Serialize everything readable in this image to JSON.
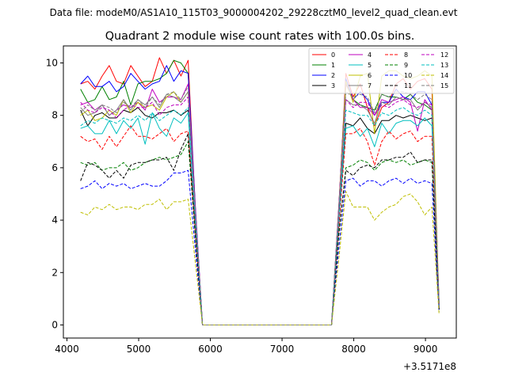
{
  "figure": {
    "suptitle": "Data file: modeM0/AS1A10_115T03_9000004202_29228cztM0_level2_quad_clean.evt"
  },
  "chart_data": {
    "type": "line",
    "title": "Quadrant 2 module wise count rates with 100.0s bins.",
    "xlabel": "",
    "ylabel": "",
    "x_offset_label": "+3.5171e8",
    "xlim": [
      3950,
      9430
    ],
    "ylim": [
      -0.5,
      10.65
    ],
    "x_ticks": [
      4000,
      5000,
      6000,
      7000,
      8000,
      9000
    ],
    "y_ticks": [
      0,
      2,
      4,
      6,
      8,
      10
    ],
    "grid": false,
    "legend_position": "top-right",
    "legend_columns": 4,
    "x": [
      4190,
      4290,
      4390,
      4490,
      4590,
      4690,
      4790,
      4890,
      4990,
      5090,
      5190,
      5290,
      5390,
      5490,
      5590,
      5690,
      5790,
      5890,
      7690,
      7790,
      7890,
      7990,
      8090,
      8190,
      8290,
      8390,
      8490,
      8590,
      8690,
      8790,
      8890,
      8990,
      9090,
      9190
    ],
    "series": [
      {
        "name": "0",
        "color": "#ff0000",
        "dash": "solid",
        "values": [
          9.2,
          9.3,
          9.0,
          9.5,
          9.9,
          9.3,
          9.2,
          9.9,
          9.5,
          9.1,
          9.3,
          10.2,
          9.6,
          10.1,
          9.5,
          10.1,
          4.5,
          0,
          0,
          4.4,
          9.6,
          8.7,
          9.2,
          8.3,
          7.6,
          8.3,
          8.5,
          9.2,
          9.4,
          9.0,
          9.3,
          9.4,
          9.0,
          0.8
        ]
      },
      {
        "name": "1",
        "color": "#008000",
        "dash": "solid",
        "values": [
          9.0,
          8.5,
          8.6,
          9.1,
          8.6,
          8.7,
          9.3,
          8.4,
          9.2,
          9.3,
          9.3,
          9.4,
          9.6,
          10.1,
          10.0,
          9.6,
          4.3,
          0,
          0,
          4.5,
          9.2,
          8.6,
          8.4,
          8.3,
          8.2,
          8.8,
          8.7,
          8.7,
          8.6,
          8.8,
          8.5,
          8.4,
          8.2,
          0.8
        ]
      },
      {
        "name": "2",
        "color": "#0000ff",
        "dash": "solid",
        "values": [
          9.2,
          9.5,
          9.1,
          9.1,
          9.3,
          8.9,
          9.1,
          9.6,
          9.3,
          9.0,
          9.2,
          9.3,
          9.9,
          9.3,
          9.7,
          9.6,
          4.6,
          0,
          0,
          4.4,
          9.4,
          8.6,
          8.9,
          8.6,
          8.0,
          8.5,
          8.5,
          9.0,
          8.7,
          8.6,
          8.9,
          8.9,
          8.4,
          0.7
        ]
      },
      {
        "name": "3",
        "color": "#000000",
        "dash": "solid",
        "values": [
          8.2,
          7.6,
          8.0,
          8.1,
          7.9,
          7.9,
          8.2,
          8.1,
          8.3,
          8.0,
          7.9,
          8.1,
          8.1,
          8.2,
          8.0,
          8.2,
          4.0,
          0,
          0,
          4.0,
          7.7,
          7.6,
          7.9,
          7.5,
          7.3,
          7.8,
          7.8,
          8.0,
          7.9,
          8.0,
          7.9,
          7.8,
          7.9,
          0.6
        ]
      },
      {
        "name": "4",
        "color": "#bf00bf",
        "dash": "solid",
        "values": [
          8.4,
          8.5,
          8.2,
          8.4,
          8.0,
          8.2,
          8.4,
          8.3,
          8.5,
          8.2,
          9.0,
          8.5,
          8.7,
          8.7,
          8.6,
          9.2,
          4.5,
          0,
          0,
          4.5,
          9.2,
          8.6,
          8.3,
          8.3,
          8.0,
          8.6,
          8.5,
          8.6,
          8.7,
          8.5,
          7.4,
          8.6,
          8.2,
          0.7
        ]
      },
      {
        "name": "5",
        "color": "#00bfbf",
        "dash": "solid",
        "values": [
          7.5,
          7.6,
          7.3,
          7.3,
          7.8,
          7.3,
          7.8,
          7.5,
          7.9,
          6.9,
          8.1,
          7.5,
          7.2,
          7.9,
          7.7,
          8.1,
          3.9,
          0,
          0,
          3.9,
          7.5,
          7.6,
          7.2,
          7.5,
          6.8,
          7.7,
          7.3,
          7.7,
          7.8,
          7.8,
          7.6,
          7.9,
          7.6,
          0.7
        ]
      },
      {
        "name": "6",
        "color": "#bfbf00",
        "dash": "solid",
        "values": [
          8.0,
          8.2,
          7.8,
          7.9,
          8.2,
          8.0,
          8.6,
          8.1,
          8.5,
          8.3,
          8.4,
          8.2,
          8.7,
          8.9,
          8.5,
          8.9,
          4.3,
          0,
          0,
          4.3,
          9.3,
          8.5,
          9.5,
          9.6,
          7.3,
          9.5,
          9.7,
          9.7,
          9.5,
          9.4,
          9.5,
          9.7,
          9.5,
          0.8
        ]
      },
      {
        "name": "7",
        "color": "#7f7f7f",
        "dash": "solid",
        "values": [
          8.3,
          8.0,
          8.1,
          8.4,
          8.0,
          8.2,
          8.6,
          8.2,
          8.6,
          8.4,
          8.7,
          8.3,
          8.8,
          8.7,
          8.5,
          8.9,
          4.3,
          0,
          0,
          4.3,
          8.6,
          8.4,
          8.4,
          8.2,
          7.7,
          8.5,
          8.4,
          8.7,
          8.6,
          8.6,
          8.2,
          8.5,
          8.3,
          0.7
        ]
      },
      {
        "name": "8",
        "color": "#ff0000",
        "dash": "dashed",
        "values": [
          7.2,
          7.0,
          7.1,
          6.7,
          7.2,
          6.8,
          7.2,
          7.6,
          7.2,
          7.2,
          7.1,
          7.3,
          7.5,
          7.0,
          7.3,
          7.4,
          3.6,
          0,
          0,
          3.7,
          7.3,
          7.3,
          7.5,
          7.0,
          6.1,
          7.0,
          7.4,
          7.1,
          7.3,
          7.4,
          7.0,
          7.2,
          7.2,
          0.6
        ]
      },
      {
        "name": "9",
        "color": "#008000",
        "dash": "dashed",
        "values": [
          6.2,
          6.1,
          6.2,
          5.9,
          6.0,
          6.0,
          6.2,
          5.9,
          6.0,
          6.2,
          6.3,
          6.4,
          6.3,
          6.4,
          6.5,
          7.0,
          3.4,
          0,
          0,
          3.4,
          6.0,
          6.1,
          6.3,
          6.2,
          5.9,
          6.2,
          6.3,
          6.2,
          6.3,
          6.1,
          6.2,
          6.3,
          6.2,
          0.6
        ]
      },
      {
        "name": "10",
        "color": "#0000ff",
        "dash": "dashed",
        "values": [
          5.2,
          5.3,
          5.5,
          5.2,
          5.4,
          5.3,
          5.4,
          5.2,
          5.3,
          5.4,
          5.3,
          5.3,
          5.5,
          5.8,
          5.8,
          5.9,
          2.9,
          0,
          0,
          2.9,
          5.5,
          5.6,
          5.3,
          5.5,
          5.5,
          5.3,
          5.5,
          5.6,
          5.4,
          5.6,
          5.4,
          5.5,
          5.4,
          0.5
        ]
      },
      {
        "name": "11",
        "color": "#000000",
        "dash": "dashed",
        "values": [
          5.5,
          6.2,
          6.1,
          5.9,
          5.6,
          5.9,
          5.6,
          6.1,
          6.2,
          6.2,
          6.3,
          6.3,
          6.4,
          5.9,
          6.7,
          7.3,
          3.5,
          0,
          0,
          3.5,
          5.9,
          5.7,
          6.0,
          6.1,
          6.0,
          6.3,
          6.3,
          6.4,
          6.4,
          6.6,
          6.2,
          6.3,
          6.3,
          0.6
        ]
      },
      {
        "name": "12",
        "color": "#bf00bf",
        "dash": "dashed",
        "values": [
          8.5,
          8.2,
          8.1,
          8.3,
          8.2,
          7.9,
          8.2,
          8.4,
          8.3,
          8.3,
          8.5,
          8.0,
          8.3,
          8.4,
          8.4,
          8.7,
          4.2,
          0,
          0,
          4.2,
          8.6,
          8.3,
          8.5,
          8.5,
          8.0,
          8.4,
          8.3,
          8.5,
          8.6,
          8.4,
          8.3,
          8.5,
          8.4,
          0.7
        ]
      },
      {
        "name": "13",
        "color": "#00bfbf",
        "dash": "dashed",
        "values": [
          7.6,
          7.8,
          7.7,
          7.9,
          7.8,
          7.7,
          7.9,
          7.8,
          8.0,
          7.8,
          8.1,
          7.8,
          8.0,
          8.2,
          8.0,
          8.3,
          4.0,
          0,
          0,
          4.0,
          8.2,
          8.1,
          8.0,
          8.0,
          7.6,
          8.1,
          8.0,
          8.2,
          8.3,
          8.1,
          8.0,
          8.2,
          8.0,
          0.7
        ]
      },
      {
        "name": "14",
        "color": "#bfbf00",
        "dash": "dashed",
        "values": [
          4.3,
          4.2,
          4.5,
          4.4,
          4.6,
          4.4,
          4.5,
          4.5,
          4.4,
          4.6,
          4.6,
          4.8,
          4.4,
          4.7,
          4.7,
          4.8,
          2.4,
          0,
          0,
          2.5,
          5.1,
          4.5,
          4.5,
          4.5,
          4.0,
          4.3,
          4.5,
          4.6,
          4.9,
          5.0,
          4.7,
          4.2,
          4.5,
          0.4
        ]
      },
      {
        "name": "15",
        "color": "#7f7f7f",
        "dash": "dashed",
        "values": [
          8.1,
          8.4,
          8.2,
          8.4,
          8.3,
          8.1,
          8.5,
          8.3,
          8.6,
          8.3,
          8.7,
          8.4,
          8.8,
          8.9,
          8.6,
          9.1,
          4.4,
          0,
          0,
          4.4,
          8.9,
          8.7,
          8.8,
          8.7,
          8.1,
          8.8,
          8.7,
          8.9,
          8.9,
          8.8,
          8.6,
          8.8,
          8.6,
          0.7
        ]
      }
    ]
  }
}
